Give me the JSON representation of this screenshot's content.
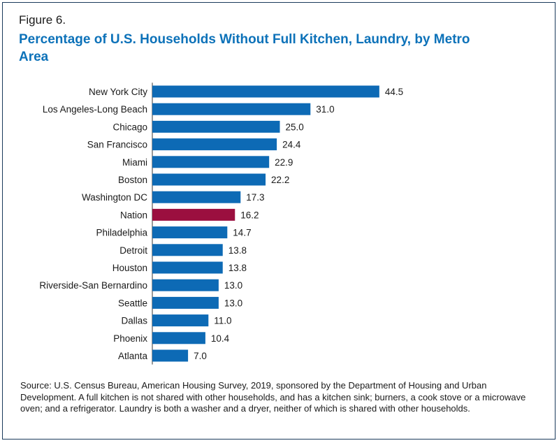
{
  "figure_label": "Figure 6.",
  "title": "Percentage of U.S. Households Without Full Kitchen, Laundry, by Metro Area",
  "source": "Source: U.S. Census Bureau, American Housing Survey, 2019, sponsored by the Department of Housing and Urban Development. A full kitchen is not shared with other households, and has a kitchen sink; burners, a cook stove or a microwave oven; and a refrigerator. Laundry is both a washer and a dryer, neither of which is shared with other households.",
  "colors": {
    "bar": "#0d6ab5",
    "highlight": "#9b0f3f",
    "title": "#0d72b9"
  },
  "chart_data": {
    "type": "bar",
    "orientation": "horizontal",
    "title": "Percentage of U.S. Households Without Full Kitchen, Laundry, by Metro Area",
    "xlabel": "",
    "ylabel": "",
    "xlim": [
      0,
      50
    ],
    "grid": false,
    "legend": "none",
    "highlight_category": "Nation",
    "categories": [
      "New York City",
      "Los Angeles-Long Beach",
      "Chicago",
      "San Francisco",
      "Miami",
      "Boston",
      "Washington DC",
      "Nation",
      "Philadelphia",
      "Detroit",
      "Houston",
      "Riverside-San Bernardino",
      "Seattle",
      "Dallas",
      "Phoenix",
      "Atlanta"
    ],
    "values": [
      44.5,
      31.0,
      25.0,
      24.4,
      22.9,
      22.2,
      17.3,
      16.2,
      14.7,
      13.8,
      13.8,
      13.0,
      13.0,
      11.0,
      10.4,
      7.0
    ],
    "value_labels": [
      "44.5",
      "31.0",
      "25.0",
      "24.4",
      "22.9",
      "22.2",
      "17.3",
      "16.2",
      "14.7",
      "13.8",
      "13.8",
      "13.0",
      "13.0",
      "11.0",
      "10.4",
      "7.0"
    ]
  }
}
